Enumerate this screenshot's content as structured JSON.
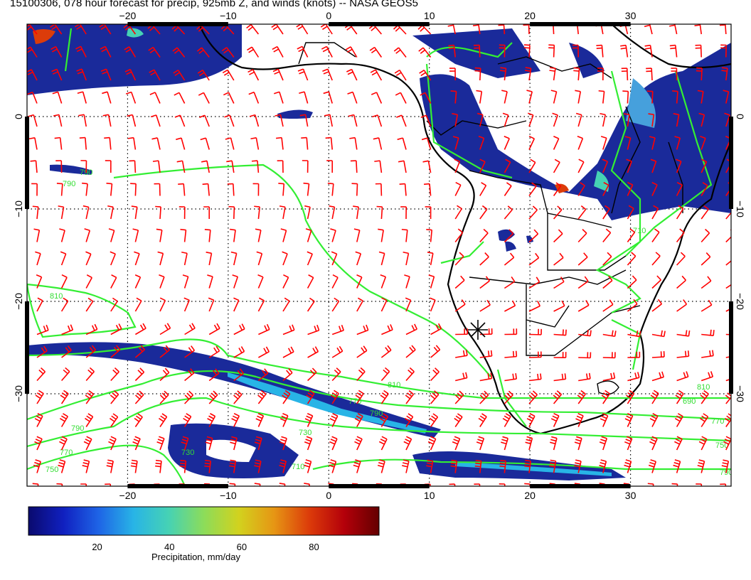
{
  "title": "15100306, 078 hour forecast for precip, 925mb Z, and winds (knots) -- NASA GEOS5",
  "map": {
    "lon_range": [
      -30,
      40
    ],
    "lat_range": [
      -40,
      10
    ],
    "lon_ticks": [
      -20,
      -10,
      0,
      10,
      20,
      30
    ],
    "lon_tick_labels": [
      "−20",
      "−10",
      "0",
      "10",
      "20",
      "30"
    ],
    "lat_ticks": [
      0,
      -10,
      -20,
      -30
    ],
    "lat_tick_labels": [
      "0",
      "−10",
      "−20",
      "−30"
    ],
    "wind_barb_color": "#ff0000",
    "contour_color": "#33ee33",
    "contour_labels": [
      "790",
      "790",
      "810",
      "790",
      "770",
      "750",
      "730",
      "710",
      "730",
      "770",
      "790",
      "810",
      "770",
      "750",
      "790",
      "810",
      "690",
      "710"
    ]
  },
  "colorbar": {
    "ticks": [
      "20",
      "40",
      "60",
      "80"
    ],
    "label": "Precipitation, mm/day",
    "colors": [
      "#0a0a6e",
      "#1020c0",
      "#1e64e6",
      "#28b4e6",
      "#46d2b4",
      "#8cdc5a",
      "#d2d21e",
      "#e69614",
      "#dc3c0a",
      "#b4000a",
      "#640000"
    ]
  }
}
